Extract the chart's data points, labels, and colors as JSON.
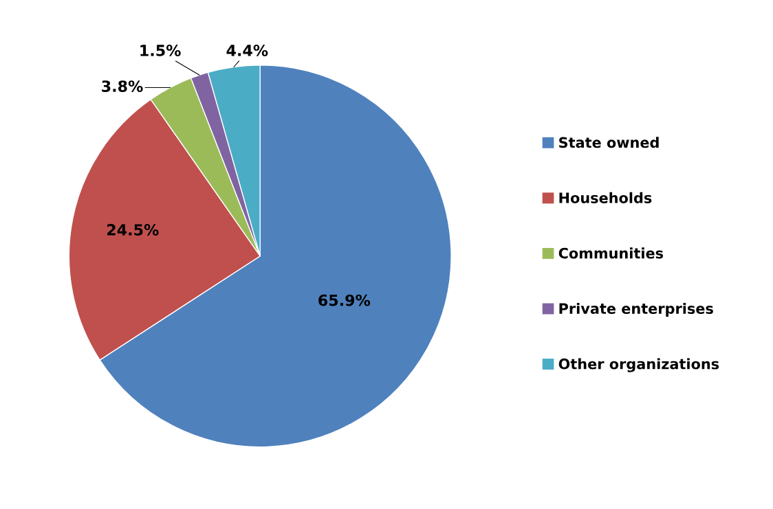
{
  "chart_data": {
    "type": "pie",
    "categories": [
      "State owned",
      "Households",
      "Communities",
      "Private enterprises",
      "Other organizations"
    ],
    "values": [
      65.9,
      24.5,
      3.8,
      1.5,
      4.4
    ],
    "colors": [
      "#4f81bd",
      "#c0504d",
      "#9bbb59",
      "#8064a2",
      "#4bacc6"
    ],
    "value_labels": [
      "65.9%",
      "24.5%",
      "3.8%",
      "1.5%",
      "4.4%"
    ],
    "legend": "right"
  }
}
